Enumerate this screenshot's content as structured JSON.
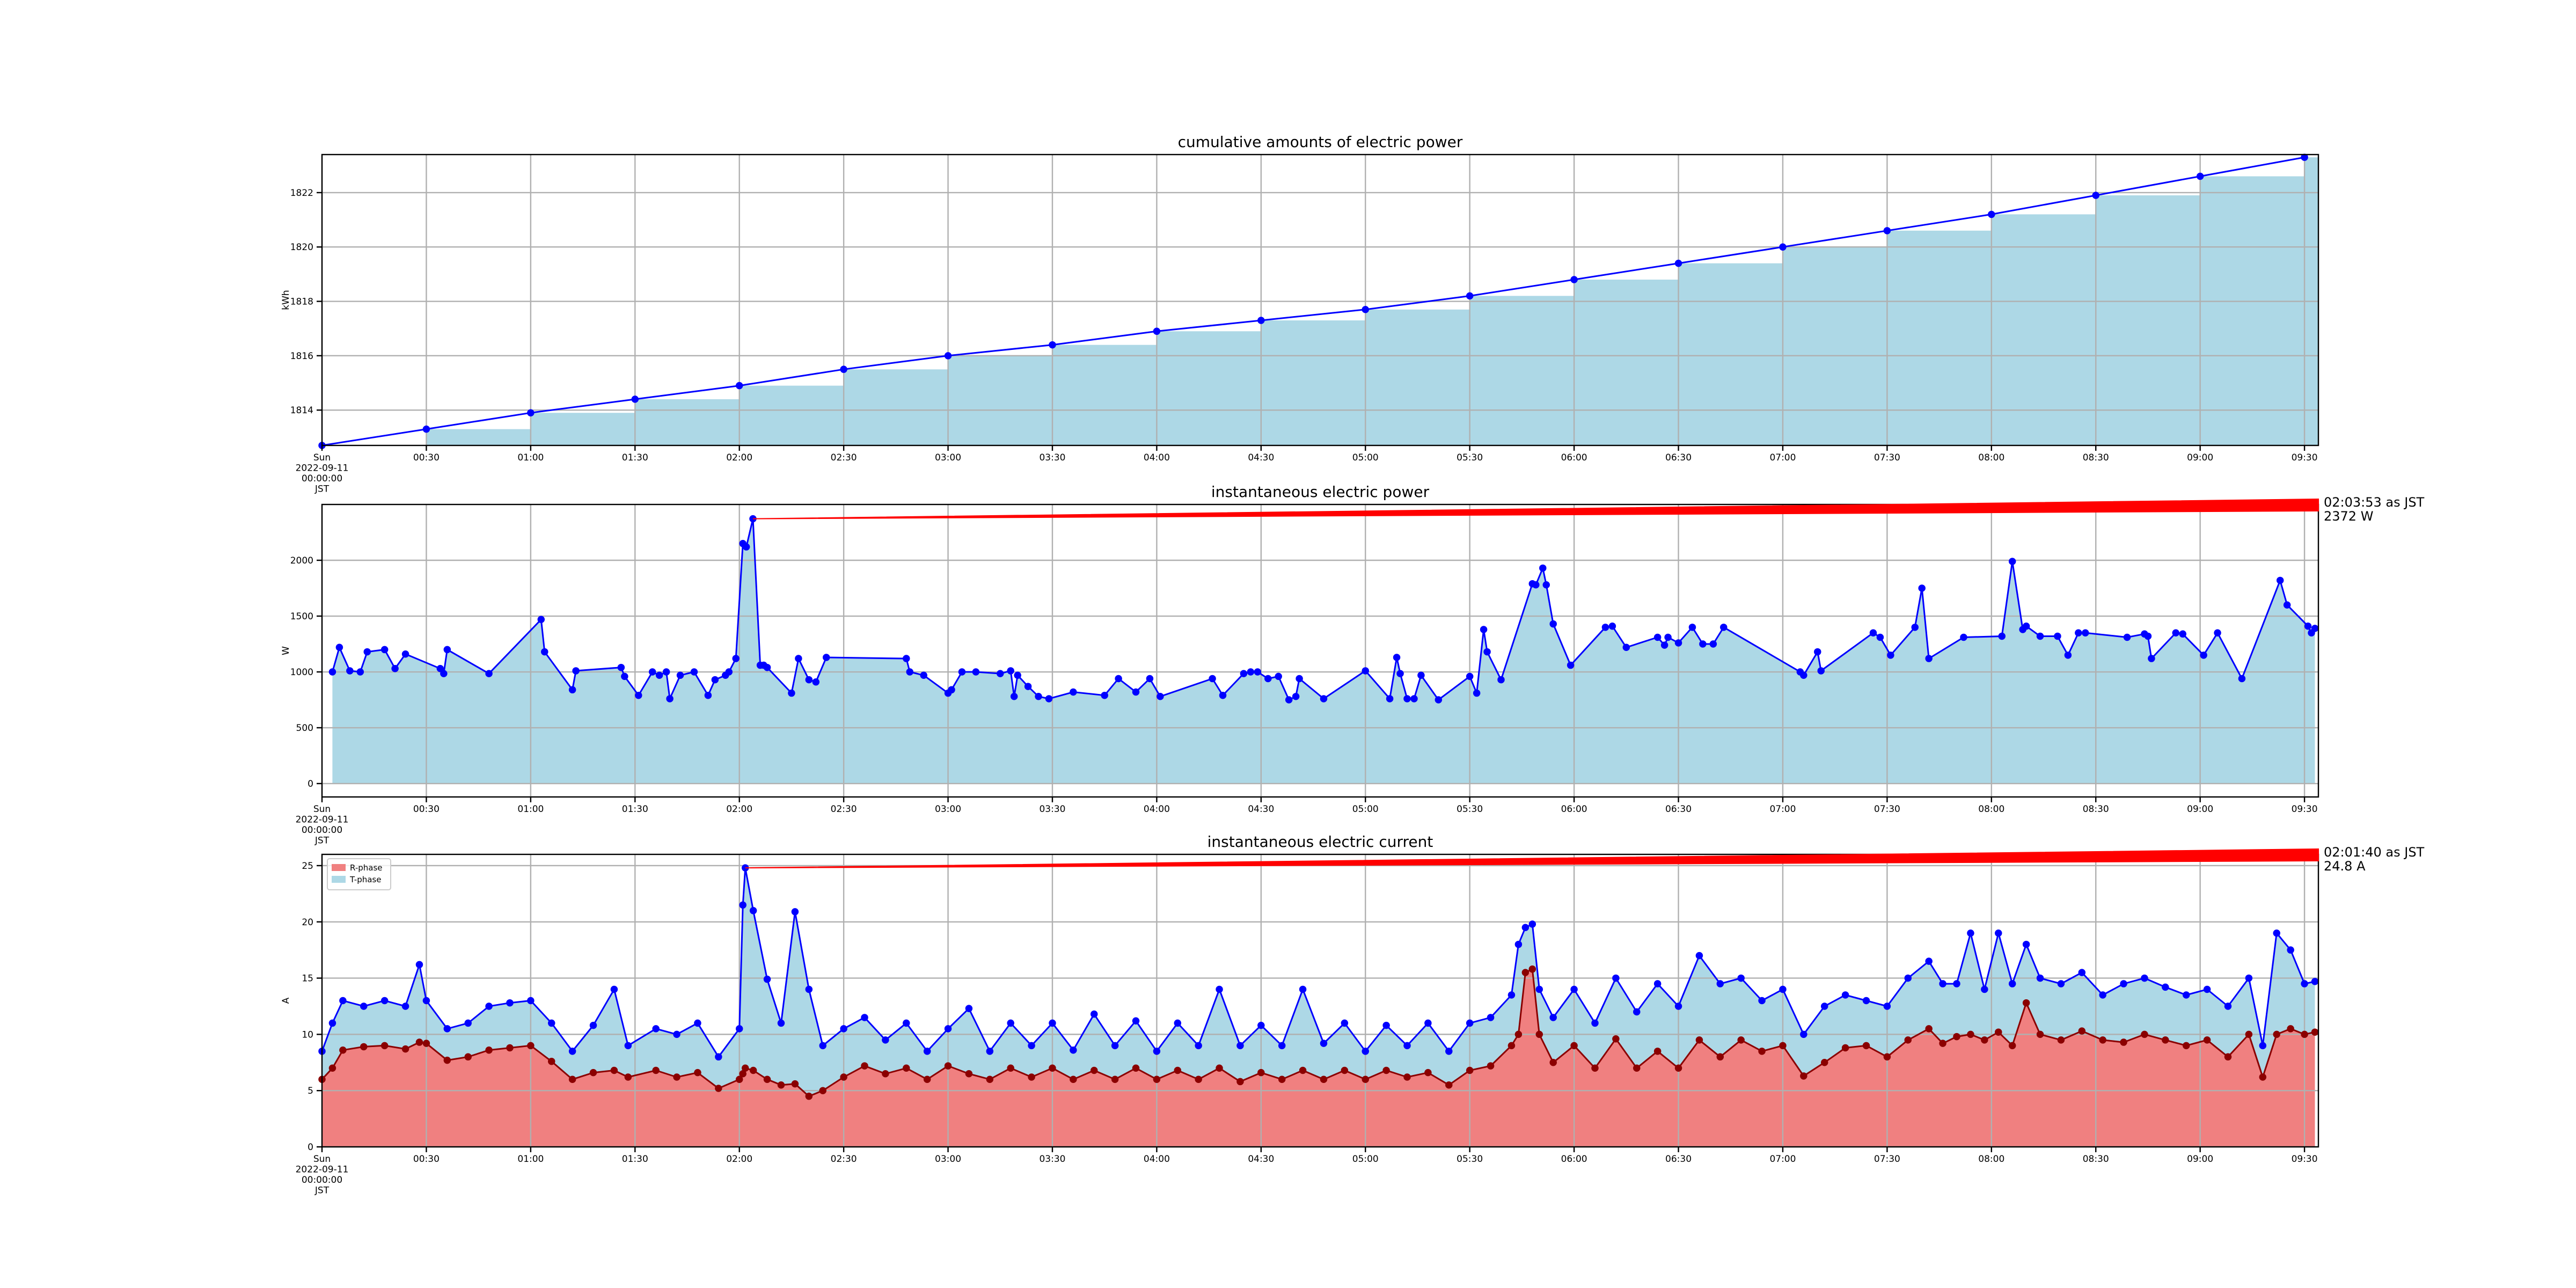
{
  "chart_data": [
    {
      "type": "step",
      "title": "cumulative amounts of electric power",
      "ylabel": "kWh",
      "line_color": "#0000ff",
      "fill_color": "#add8e6",
      "x": [
        0,
        30,
        60,
        90,
        120,
        150,
        180,
        210,
        240,
        270,
        300,
        330,
        360,
        390,
        420,
        450,
        480,
        510,
        540,
        570
      ],
      "values": [
        1812.7,
        1813.3,
        1813.9,
        1814.4,
        1814.9,
        1815.5,
        1816.0,
        1816.4,
        1816.9,
        1817.3,
        1817.7,
        1818.2,
        1818.8,
        1819.4,
        1820.0,
        1820.6,
        1821.2,
        1821.9,
        1822.6,
        1823.3
      ],
      "xlim": [
        0,
        574
      ],
      "ylim": [
        1812.7,
        1823.4
      ],
      "xticks": [
        {
          "value": 0,
          "label": "Sun\n2022-09-11\n00:00:00\nJST"
        },
        {
          "value": 30,
          "label": "00:30"
        },
        {
          "value": 60,
          "label": "01:00"
        },
        {
          "value": 90,
          "label": "01:30"
        },
        {
          "value": 120,
          "label": "02:00"
        },
        {
          "value": 150,
          "label": "02:30"
        },
        {
          "value": 180,
          "label": "03:00"
        },
        {
          "value": 210,
          "label": "03:30"
        },
        {
          "value": 240,
          "label": "04:00"
        },
        {
          "value": 270,
          "label": "04:30"
        },
        {
          "value": 300,
          "label": "05:00"
        },
        {
          "value": 330,
          "label": "05:30"
        },
        {
          "value": 360,
          "label": "06:00"
        },
        {
          "value": 390,
          "label": "06:30"
        },
        {
          "value": 420,
          "label": "07:00"
        },
        {
          "value": 450,
          "label": "07:30"
        },
        {
          "value": 480,
          "label": "08:00"
        },
        {
          "value": 510,
          "label": "08:30"
        },
        {
          "value": 540,
          "label": "09:00"
        },
        {
          "value": 570,
          "label": "09:30"
        }
      ],
      "yticks": [
        1814,
        1816,
        1818,
        1820,
        1822
      ],
      "grid": true
    },
    {
      "type": "area",
      "title": "instantaneous electric power",
      "ylabel": "W",
      "line_color": "#0000ff",
      "fill_color": "#add8e6",
      "x": [
        3,
        5,
        8,
        11,
        13,
        18,
        21,
        24,
        34,
        35,
        36,
        48,
        63,
        64,
        72,
        73,
        86,
        87,
        91,
        95,
        97,
        99,
        100,
        103,
        107,
        111,
        113,
        116,
        117,
        119,
        121,
        122,
        123.9,
        126,
        127,
        128,
        135,
        137,
        140,
        142,
        145,
        168,
        169,
        173,
        180,
        181,
        184,
        188,
        195,
        198,
        199,
        200,
        203,
        206,
        209,
        216,
        225,
        229,
        234,
        238,
        241,
        256,
        259,
        265,
        267,
        269,
        272,
        275,
        278,
        280,
        281,
        288,
        300,
        307,
        309,
        310,
        312,
        314,
        316,
        321,
        330,
        332,
        334,
        335,
        339,
        348,
        349,
        351,
        352,
        354,
        359,
        369,
        371,
        375,
        384,
        386,
        387,
        390,
        394,
        397,
        400,
        403,
        425,
        426,
        430,
        431,
        446,
        448,
        451,
        458,
        460,
        462,
        472,
        483,
        486,
        489,
        490,
        494,
        499,
        502,
        505,
        507,
        519,
        524,
        525,
        526,
        533,
        535,
        541,
        545,
        552,
        563,
        565,
        571,
        572,
        573
      ],
      "values": [
        1000,
        1220,
        1010,
        1000,
        1180,
        1200,
        1030,
        1160,
        1030,
        985,
        1200,
        985,
        1470,
        1180,
        840,
        1010,
        1040,
        960,
        790,
        1000,
        970,
        1000,
        760,
        970,
        1000,
        790,
        930,
        970,
        1000,
        1120,
        2150,
        2120,
        2372,
        1060,
        1060,
        1040,
        810,
        1120,
        930,
        910,
        1130,
        1120,
        1000,
        970,
        810,
        840,
        1000,
        1000,
        985,
        1010,
        780,
        970,
        870,
        780,
        760,
        820,
        790,
        940,
        820,
        940,
        780,
        940,
        790,
        985,
        1000,
        1000,
        940,
        960,
        750,
        780,
        940,
        760,
        1010,
        760,
        1130,
        985,
        760,
        760,
        970,
        750,
        960,
        810,
        1380,
        1180,
        930,
        1790,
        1780,
        1930,
        1780,
        1430,
        1060,
        1400,
        1410,
        1220,
        1310,
        1240,
        1310,
        1260,
        1400,
        1250,
        1250,
        1400,
        1000,
        970,
        1180,
        1010,
        1350,
        1310,
        1150,
        1400,
        1750,
        1120,
        1310,
        1320,
        1990,
        1380,
        1410,
        1320,
        1320,
        1150,
        1350,
        1350,
        1310,
        1340,
        1320,
        1120,
        1350,
        1340,
        1150,
        1350,
        940,
        1820,
        1600,
        1410,
        1350,
        1390
      ],
      "xlim": [
        0,
        574
      ],
      "ylim": [
        -120,
        2500
      ],
      "xticks": [
        {
          "value": 0,
          "label": "Sun\n2022-09-11\n00:00:00\nJST"
        },
        {
          "value": 30,
          "label": "00:30"
        },
        {
          "value": 60,
          "label": "01:00"
        },
        {
          "value": 90,
          "label": "01:30"
        },
        {
          "value": 120,
          "label": "02:00"
        },
        {
          "value": 150,
          "label": "02:30"
        },
        {
          "value": 180,
          "label": "03:00"
        },
        {
          "value": 210,
          "label": "03:30"
        },
        {
          "value": 240,
          "label": "04:00"
        },
        {
          "value": 270,
          "label": "04:30"
        },
        {
          "value": 300,
          "label": "05:00"
        },
        {
          "value": 330,
          "label": "05:30"
        },
        {
          "value": 360,
          "label": "06:00"
        },
        {
          "value": 390,
          "label": "06:30"
        },
        {
          "value": 420,
          "label": "07:00"
        },
        {
          "value": 450,
          "label": "07:30"
        },
        {
          "value": 480,
          "label": "08:00"
        },
        {
          "value": 510,
          "label": "08:30"
        },
        {
          "value": 540,
          "label": "09:00"
        },
        {
          "value": 570,
          "label": "09:30"
        }
      ],
      "yticks": [
        0,
        500,
        1000,
        1500,
        2000
      ],
      "grid": true,
      "annotation": {
        "x": 123.9,
        "y": 2372,
        "text": [
          "02:03:53 as JST",
          "2372 W"
        ],
        "color": "#ff0000"
      }
    },
    {
      "type": "stackplot",
      "title": "instantaneous electric current",
      "ylabel": "A",
      "legend": "upper left",
      "x": [
        0,
        3,
        6,
        12,
        18,
        24,
        28,
        30,
        36,
        42,
        48,
        54,
        60,
        66,
        72,
        78,
        84,
        88,
        96,
        102,
        108,
        114,
        120,
        121,
        121.7,
        124,
        128,
        132,
        136,
        140,
        144,
        150,
        156,
        162,
        168,
        174,
        180,
        186,
        192,
        198,
        204,
        210,
        216,
        222,
        228,
        234,
        240,
        246,
        252,
        258,
        264,
        270,
        276,
        282,
        288,
        294,
        300,
        306,
        312,
        318,
        324,
        330,
        336,
        342,
        344,
        346,
        348,
        350,
        354,
        360,
        366,
        372,
        378,
        384,
        390,
        396,
        402,
        408,
        414,
        420,
        426,
        432,
        438,
        444,
        450,
        456,
        462,
        466,
        470,
        474,
        478,
        482,
        486,
        490,
        494,
        500,
        506,
        512,
        518,
        524,
        530,
        536,
        542,
        548,
        554,
        558,
        562,
        566,
        570,
        573
      ],
      "series": [
        {
          "name": "R-phase",
          "color": "#f08080",
          "line_color": "#8b0000",
          "values": [
            6.0,
            7.0,
            8.6,
            8.9,
            9.0,
            8.7,
            9.3,
            9.2,
            7.7,
            8.0,
            8.6,
            8.8,
            9.0,
            7.6,
            6.0,
            6.6,
            6.8,
            6.2,
            6.8,
            6.2,
            6.6,
            5.2,
            6.0,
            6.5,
            7.0,
            6.8,
            6.0,
            5.5,
            5.6,
            4.5,
            5.0,
            6.2,
            7.2,
            6.5,
            7.0,
            6.0,
            7.2,
            6.5,
            6.0,
            7.0,
            6.2,
            7.0,
            6.0,
            6.8,
            6.0,
            7.0,
            6.0,
            6.8,
            6.0,
            7.0,
            5.8,
            6.6,
            6.0,
            6.8,
            6.0,
            6.8,
            6.0,
            6.8,
            6.2,
            6.6,
            5.5,
            6.8,
            7.2,
            9.0,
            10.0,
            15.5,
            15.8,
            10.0,
            7.5,
            9.0,
            7.0,
            9.6,
            7.0,
            8.5,
            7.0,
            9.5,
            8.0,
            9.5,
            8.5,
            9.0,
            6.3,
            7.5,
            8.8,
            9.0,
            8.0,
            9.5,
            10.5,
            9.2,
            9.8,
            10.0,
            9.5,
            10.2,
            9.0,
            12.8,
            10.0,
            9.5,
            10.3,
            9.5,
            9.3,
            10.0,
            9.5,
            9.0,
            9.5,
            8.0,
            10.0,
            6.2,
            10.0,
            10.5,
            10.0,
            10.2
          ]
        },
        {
          "name": "T-phase",
          "color": "#add8e6",
          "line_color": "#0000ff",
          "values": [
            2.5,
            4.0,
            4.4,
            3.6,
            4.0,
            3.8,
            6.9,
            3.8,
            2.8,
            3.0,
            3.9,
            4.0,
            4.0,
            3.4,
            2.5,
            4.2,
            7.2,
            2.8,
            3.7,
            3.8,
            4.4,
            2.8,
            4.5,
            15.0,
            17.8,
            14.2,
            8.9,
            5.5,
            15.3,
            9.5,
            4.0,
            4.3,
            4.3,
            3.0,
            4.0,
            2.5,
            3.3,
            5.8,
            2.5,
            4.0,
            2.8,
            4.0,
            2.6,
            5.0,
            3.0,
            4.2,
            2.5,
            4.2,
            3.0,
            7.0,
            3.2,
            4.2,
            3.0,
            7.2,
            3.2,
            4.2,
            2.5,
            4.0,
            2.8,
            4.4,
            3.0,
            4.2,
            4.3,
            4.5,
            8.0,
            4.0,
            4.0,
            4.0,
            4.0,
            5.0,
            4.0,
            5.4,
            5.0,
            6.0,
            5.5,
            7.5,
            6.5,
            5.5,
            4.5,
            5.0,
            3.7,
            5.0,
            4.7,
            4.0,
            4.5,
            5.5,
            6.0,
            5.3,
            4.7,
            9.0,
            4.5,
            8.8,
            5.5,
            5.2,
            5.0,
            5.0,
            5.2,
            4.0,
            5.2,
            5.0,
            4.7,
            4.5,
            4.5,
            4.5,
            5.0,
            2.8,
            9.0,
            7.0,
            4.5,
            4.5
          ]
        }
      ],
      "xlim": [
        0,
        574
      ],
      "ylim": [
        0,
        26
      ],
      "xticks": [
        {
          "value": 0,
          "label": "Sun\n2022-09-11\n00:00:00\nJST"
        },
        {
          "value": 30,
          "label": "00:30"
        },
        {
          "value": 60,
          "label": "01:00"
        },
        {
          "value": 90,
          "label": "01:30"
        },
        {
          "value": 120,
          "label": "02:00"
        },
        {
          "value": 150,
          "label": "02:30"
        },
        {
          "value": 180,
          "label": "03:00"
        },
        {
          "value": 210,
          "label": "03:30"
        },
        {
          "value": 240,
          "label": "04:00"
        },
        {
          "value": 270,
          "label": "04:30"
        },
        {
          "value": 300,
          "label": "05:00"
        },
        {
          "value": 330,
          "label": "05:30"
        },
        {
          "value": 360,
          "label": "06:00"
        },
        {
          "value": 390,
          "label": "06:30"
        },
        {
          "value": 420,
          "label": "07:00"
        },
        {
          "value": 450,
          "label": "07:30"
        },
        {
          "value": 480,
          "label": "08:00"
        },
        {
          "value": 510,
          "label": "08:30"
        },
        {
          "value": 540,
          "label": "09:00"
        },
        {
          "value": 570,
          "label": "09:30"
        }
      ],
      "yticks": [
        0,
        5,
        10,
        15,
        20,
        25
      ],
      "grid": true,
      "annotation": {
        "x": 121.7,
        "y": 24.8,
        "text": [
          "02:01:40 as JST",
          "24.8 A"
        ],
        "color": "#ff0000"
      }
    }
  ]
}
